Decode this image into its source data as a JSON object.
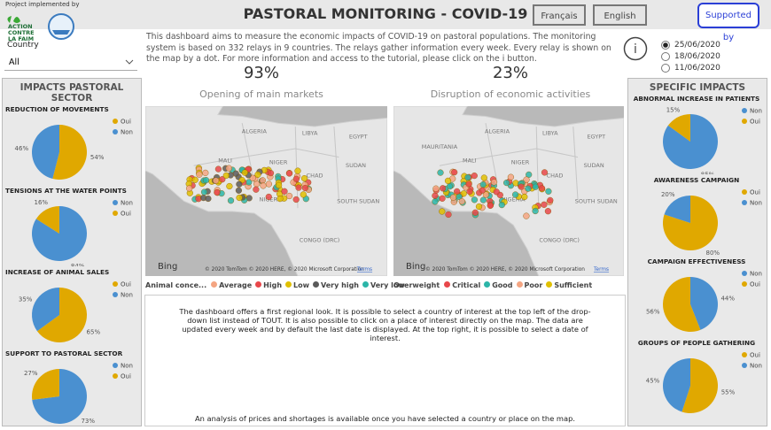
{
  "header": {
    "implemented_by": "Project implemented by",
    "logo_lines": [
      "ACTION",
      "CONTRE",
      "LA FAIM"
    ],
    "title": "PASTORAL MONITORING - COVID-19",
    "buttons": [
      "Français",
      "English",
      "Supported by"
    ]
  },
  "filter": {
    "label": "Country",
    "value": "All"
  },
  "intro": "This dashboard aims to measure the economic impacts of COVID-19 on pastoral populations. The monitoring system is based on 332 relays in 9 countries. The relays gather information every week. Every relay is shown on the map by a dot. For more information and access to the tutorial, please click on the i button.",
  "info_icon": "i",
  "dates": {
    "options": [
      "25/06/2020",
      "18/06/2020",
      "11/06/2020"
    ],
    "selected": 0
  },
  "kpis": [
    {
      "value": "93%",
      "label": "Opening of main markets"
    },
    {
      "value": "23%",
      "label": "Disruption of economic activities"
    }
  ],
  "maps": [
    {
      "legend_title": "Animal conce...",
      "legend": [
        {
          "name": "Average",
          "color": "#f4a582"
        },
        {
          "name": "High",
          "color": "#e8474a"
        },
        {
          "name": "Low",
          "color": "#e0c000"
        },
        {
          "name": "Very high",
          "color": "#5a5a5a"
        },
        {
          "name": "Very low",
          "color": "#2cb5a8"
        }
      ],
      "places": [
        "ALGERIA",
        "LIBYA",
        "EGYPT",
        "MALI",
        "NIGER",
        "CHAD",
        "SUDAN",
        "NIGERIA",
        "CONGO (DRC)",
        "SOUTH SUDAN"
      ],
      "provider": "Bing",
      "copyright": "© 2020 TomTom © 2020 HERE, © 2020 Microsoft Corporation",
      "terms": "Terms"
    },
    {
      "legend_title": "Overweight",
      "legend": [
        {
          "name": "Critical",
          "color": "#e8474a"
        },
        {
          "name": "Good",
          "color": "#2cb5a8"
        },
        {
          "name": "Poor",
          "color": "#f4a582"
        },
        {
          "name": "Sufficient",
          "color": "#e0c000"
        }
      ],
      "places": [
        "ALGERIA",
        "LIBYA",
        "EGYPT",
        "MAURITANIA",
        "MALI",
        "NIGER",
        "CHAD",
        "SUDAN",
        "NIGERIA",
        "CONGO (DRC)",
        "SOUTH SUDAN"
      ],
      "provider": "Bing",
      "copyright": "© 2020 TomTom © 2020 HERE, © 2020 Microsoft Corporation",
      "terms": "Terms"
    }
  ],
  "panels": [
    {
      "title": "IMPACTS PASTORAL SECTOR",
      "charts": [
        {
          "type": "pie",
          "title": "REDUCTION OF MOVEMENTS",
          "categories": [
            "Oui",
            "Non"
          ],
          "values": [
            54,
            46
          ],
          "value_labels": [
            "54%",
            "46%"
          ],
          "colors": [
            "#e0a800",
            "#4a90d0"
          ]
        },
        {
          "type": "pie",
          "title": "TENSIONS AT THE WATER POINTS",
          "categories": [
            "Non",
            "Oui"
          ],
          "values": [
            84,
            16
          ],
          "value_labels": [
            "84%",
            "16%"
          ],
          "colors": [
            "#4a90d0",
            "#e0a800"
          ]
        },
        {
          "type": "pie",
          "title": "INCREASE OF ANIMAL SALES",
          "categories": [
            "Oui",
            "Non"
          ],
          "values": [
            65,
            35
          ],
          "value_labels": [
            "65%",
            "35%"
          ],
          "colors": [
            "#e0a800",
            "#4a90d0"
          ]
        },
        {
          "type": "pie",
          "title": "SUPPORT TO PASTORAL SECTOR",
          "categories": [
            "Non",
            "Oui"
          ],
          "values": [
            73,
            27
          ],
          "value_labels": [
            "73%",
            "27%"
          ],
          "colors": [
            "#4a90d0",
            "#e0a800"
          ]
        }
      ]
    },
    {
      "title": "SPECIFIC IMPACTS",
      "charts": [
        {
          "type": "pie",
          "title": "ABNORMAL INCREASE IN PATIENTS",
          "categories": [
            "Non",
            "Oui"
          ],
          "values": [
            85,
            15
          ],
          "value_labels": [
            "85%",
            "15%"
          ],
          "colors": [
            "#4a90d0",
            "#e0a800"
          ]
        },
        {
          "type": "pie",
          "title": "AWARENESS CAMPAIGN",
          "categories": [
            "Oui",
            "Non"
          ],
          "values": [
            80,
            20
          ],
          "value_labels": [
            "80%",
            "20%"
          ],
          "colors": [
            "#e0a800",
            "#4a90d0"
          ]
        },
        {
          "type": "pie",
          "title": "CAMPAIGN EFFECTIVENESS",
          "categories": [
            "Non",
            "Oui"
          ],
          "values": [
            44,
            56
          ],
          "value_labels": [
            "44%",
            "56%"
          ],
          "colors": [
            "#4a90d0",
            "#e0a800"
          ]
        },
        {
          "type": "pie",
          "title": "GROUPS OF PEOPLE GATHERING",
          "categories": [
            "Oui",
            "Non"
          ],
          "values": [
            55,
            45
          ],
          "value_labels": [
            "55%",
            "45%"
          ],
          "colors": [
            "#e0a800",
            "#4a90d0"
          ]
        }
      ]
    }
  ],
  "note": {
    "text": "The dashboard offers a first regional look. It is possible to select a country of interest at the top left of the drop-down list instead of TOUT. It is also possible to click on a place of interest directly on the map. The data are updated every week and by default the last date is displayed. At the top right, it is possible to select a date of interest.",
    "footer": "An analysis of prices and shortages is available once you have selected a country or place on the map."
  }
}
